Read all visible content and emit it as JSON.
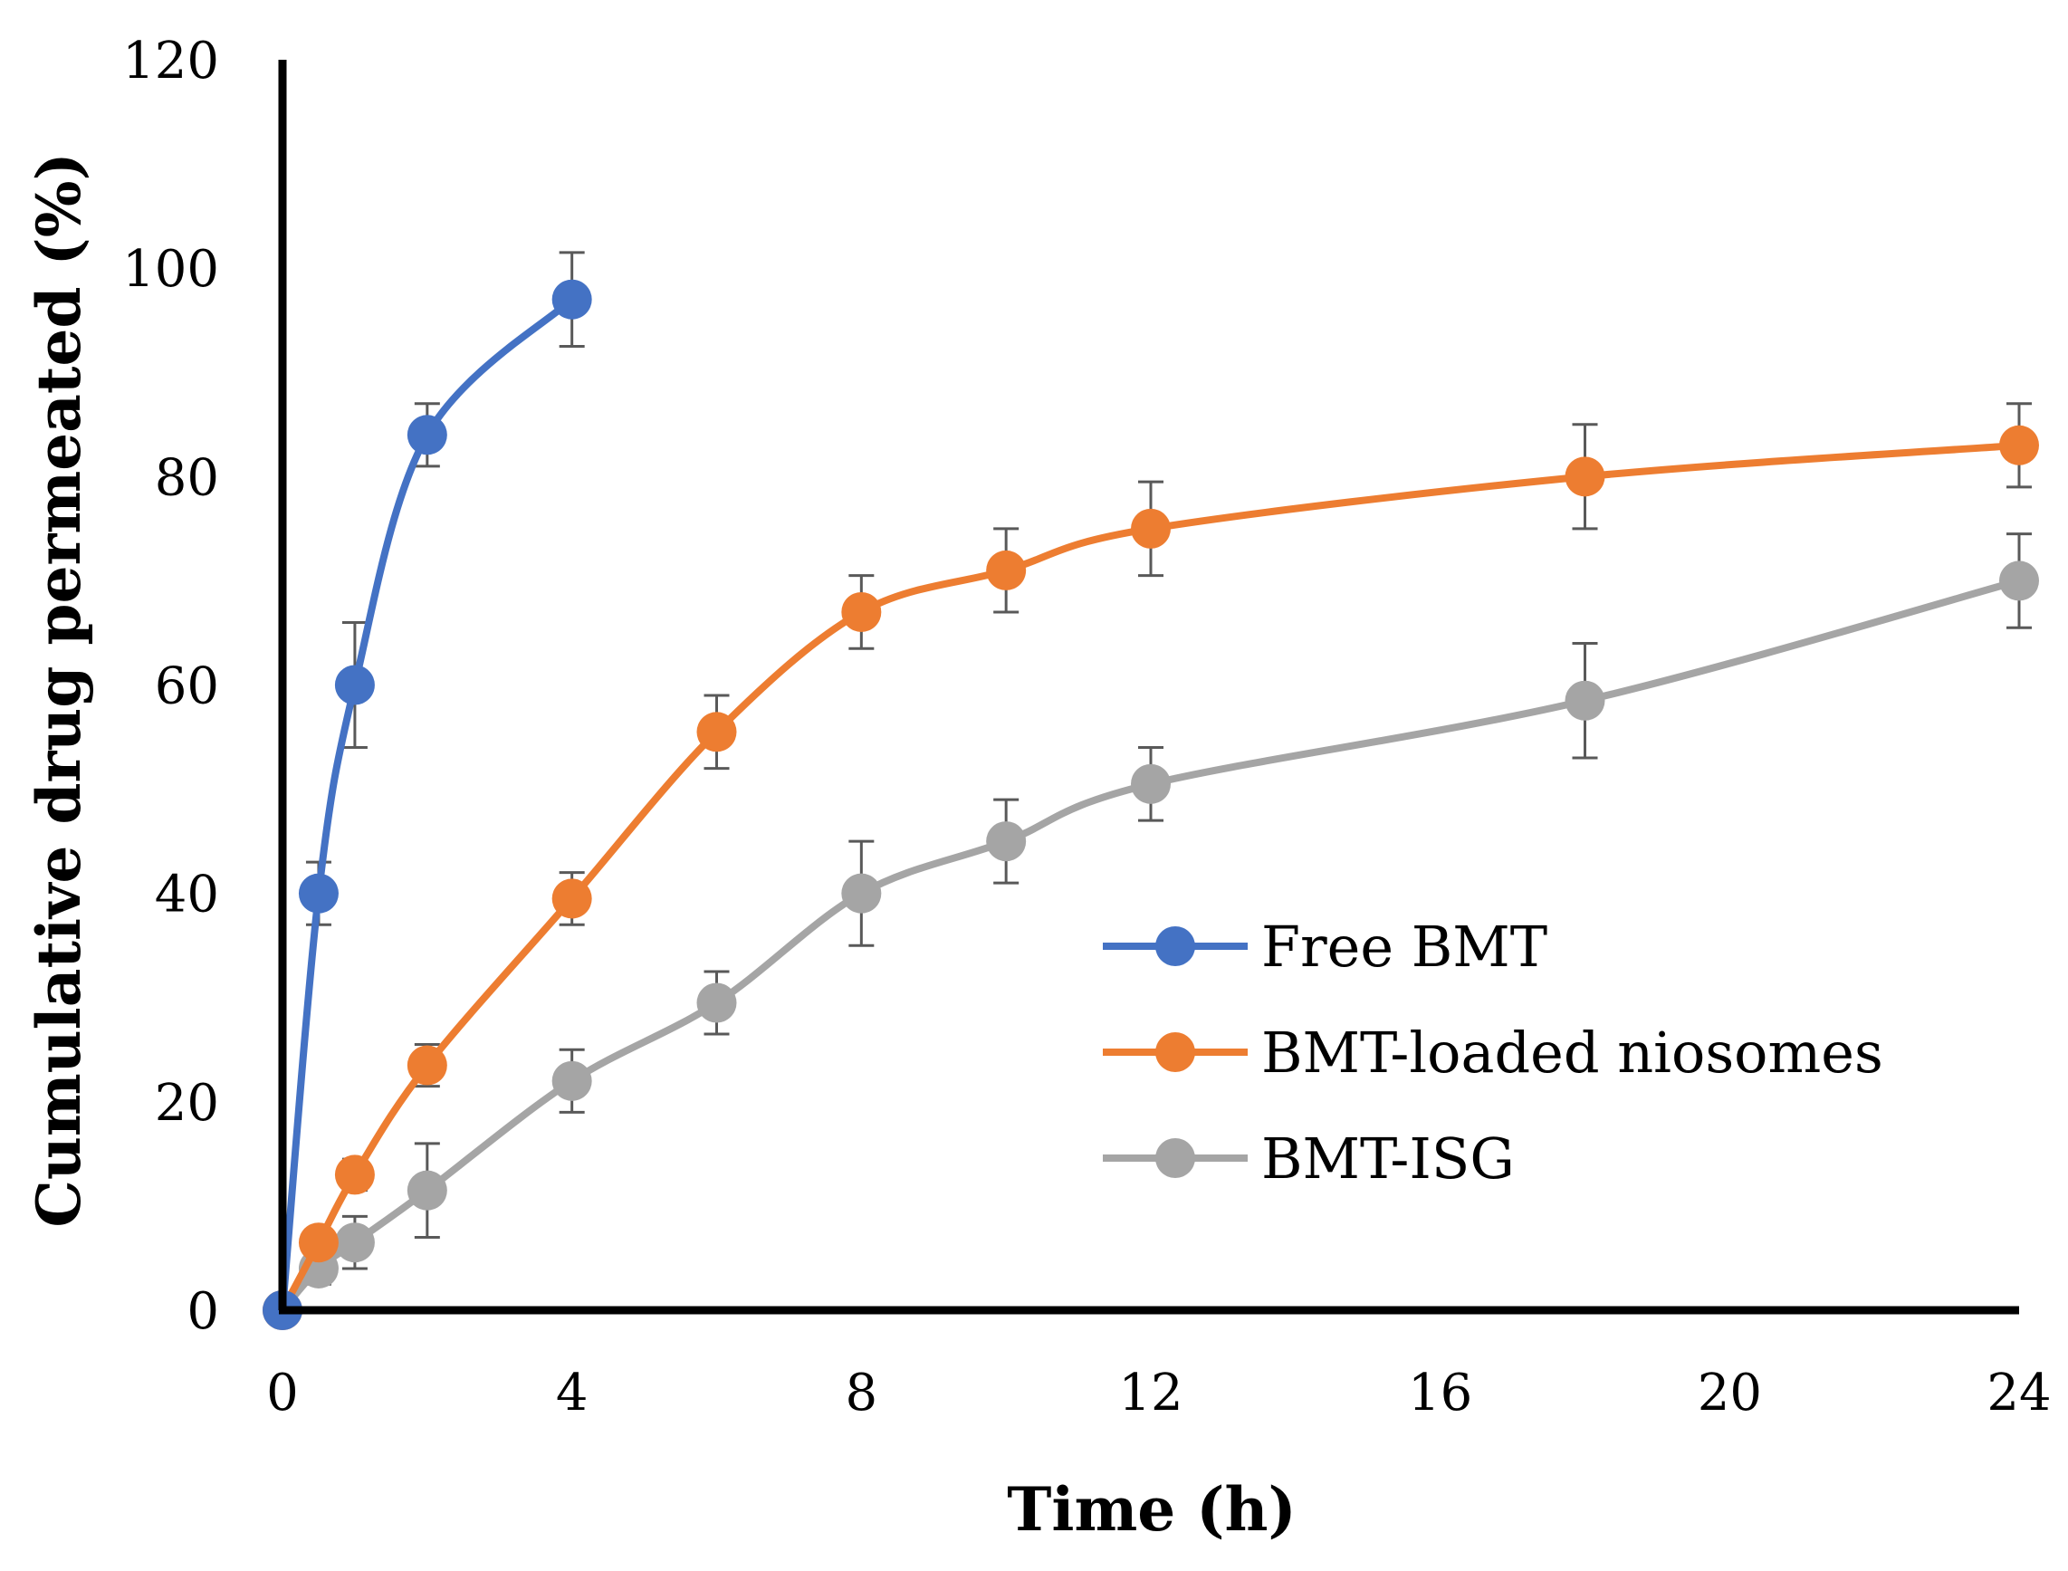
{
  "chart_data": {
    "type": "line",
    "title": "",
    "xlabel": "Time (h)",
    "ylabel": "Cumulative drug permeated (%)",
    "xlim": [
      0,
      24
    ],
    "ylim": [
      0,
      120
    ],
    "xticks": [
      0,
      4,
      8,
      12,
      16,
      20,
      24
    ],
    "yticks": [
      0,
      20,
      40,
      60,
      80,
      100,
      120
    ],
    "xtick_labels": [
      "0",
      "4",
      "8",
      "12",
      "16",
      "20",
      "24"
    ],
    "ytick_labels": [
      "0",
      "20",
      "40",
      "60",
      "80",
      "100",
      "120"
    ],
    "grid": false,
    "legend_position": "center-right",
    "series": [
      {
        "name": "Free BMT",
        "color": "#4472C4",
        "x": [
          0,
          0.5,
          1,
          2,
          4
        ],
        "y": [
          0,
          40,
          60,
          84,
          97
        ],
        "error": [
          0,
          3,
          6,
          3,
          4.5
        ]
      },
      {
        "name": "BMT-loaded niosomes",
        "color": "#ED7D31",
        "x": [
          0,
          0.5,
          1,
          2,
          4,
          6,
          8,
          10,
          12,
          18,
          24
        ],
        "y": [
          0,
          6.5,
          13,
          23.5,
          39.5,
          55.5,
          67,
          71,
          75,
          80,
          83
        ],
        "error": [
          0,
          1,
          1.5,
          2,
          2.5,
          3.5,
          3.5,
          4,
          4.5,
          5,
          4
        ]
      },
      {
        "name": "BMT-ISG",
        "color": "#A5A5A5",
        "x": [
          0,
          0.5,
          1,
          2,
          4,
          6,
          8,
          10,
          12,
          18,
          24
        ],
        "y": [
          0,
          4,
          6.5,
          11.5,
          22,
          29.5,
          40,
          45,
          50.5,
          58.5,
          70
        ],
        "error": [
          0,
          1.5,
          2.5,
          4.5,
          3,
          3,
          5,
          4,
          3.5,
          5.5,
          4.5
        ]
      }
    ]
  }
}
